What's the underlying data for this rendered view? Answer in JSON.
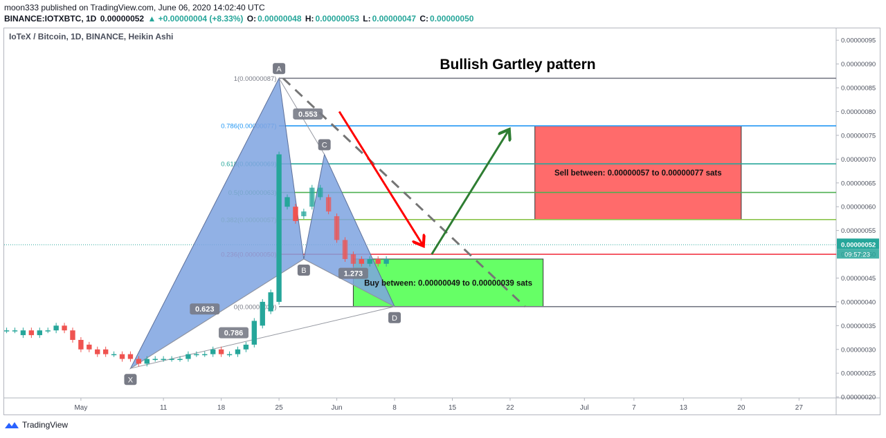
{
  "header": {
    "author_line": "moon333 published on TradingView.com, June 06, 2020 14:02:40 UTC",
    "symbol_line": "BINANCE:IOTXBTC, 1D",
    "last": "0.00000052",
    "change": "▲ +0.00000004 (+8.33%)",
    "o_label": "O:",
    "o_value": "0.00000048",
    "h_label": "H:",
    "h_value": "0.00000053",
    "l_label": "L:",
    "l_value": "0.00000047",
    "c_label": "C:",
    "c_value": "0.00000050"
  },
  "symbol_title": "IoTeX / Bitcoin, 1D, BINANCE, Heikin Ashi",
  "footer": {
    "brand": "TradingView"
  },
  "price_tag": "0.00000052",
  "countdown_tag": "09:57:23",
  "colors": {
    "up": "#26a69a",
    "down": "#ef5350",
    "pattern": "#7ea3e0",
    "sell_zone": "#ff6b6b",
    "buy_zone": "#66ff66",
    "arrow_red": "#ff0000",
    "arrow_green": "#2e7d32"
  },
  "chart_data": {
    "type": "candlestick",
    "title": "Bullish Gartley pattern",
    "y_ticks": [
      "0.00000095",
      "0.00000090",
      "0.00000085",
      "0.00000080",
      "0.00000075",
      "0.00000070",
      "0.00000065",
      "0.00000060",
      "0.00000055",
      "0.00000050",
      "0.00000045",
      "0.00000040",
      "0.00000035",
      "0.00000030",
      "0.00000025",
      "0.00000020"
    ],
    "y_tick_values": [
      95,
      90,
      85,
      80,
      75,
      70,
      65,
      60,
      55,
      50,
      45,
      40,
      35,
      30,
      25,
      20
    ],
    "ylim": [
      19.8,
      97.5
    ],
    "x_ticks": [
      {
        "label": "May",
        "day": 0
      },
      {
        "label": "11",
        "day": 10
      },
      {
        "label": "18",
        "day": 17
      },
      {
        "label": "25",
        "day": 24
      },
      {
        "label": "Jun",
        "day": 31
      },
      {
        "label": "8",
        "day": 38
      },
      {
        "label": "15",
        "day": 45
      },
      {
        "label": "22",
        "day": 52
      },
      {
        "label": "Jul",
        "day": 61
      },
      {
        "label": "7",
        "day": 67
      },
      {
        "label": "13",
        "day": 73
      },
      {
        "label": "20",
        "day": 80
      },
      {
        "label": "27",
        "day": 87
      }
    ],
    "xlim": [
      -9.3,
      91.5
    ],
    "candles": [
      {
        "day": -9,
        "o": 34,
        "c": 34
      },
      {
        "day": -8,
        "o": 34,
        "c": 34
      },
      {
        "day": -7,
        "o": 33,
        "c": 34
      },
      {
        "day": -6,
        "o": 34,
        "c": 33
      },
      {
        "day": -5,
        "o": 33,
        "c": 34
      },
      {
        "day": -4,
        "o": 34,
        "c": 34
      },
      {
        "day": -3,
        "o": 34,
        "c": 35
      },
      {
        "day": -2,
        "o": 35,
        "c": 34
      },
      {
        "day": -1,
        "o": 34,
        "c": 32
      },
      {
        "day": 0,
        "o": 32,
        "c": 30
      },
      {
        "day": 1,
        "o": 31,
        "c": 30
      },
      {
        "day": 2,
        "o": 30,
        "c": 29
      },
      {
        "day": 3,
        "o": 30,
        "c": 29
      },
      {
        "day": 4,
        "o": 29,
        "c": 29
      },
      {
        "day": 5,
        "o": 29,
        "c": 28
      },
      {
        "day": 6,
        "o": 29,
        "c": 28
      },
      {
        "day": 7,
        "o": 28,
        "c": 27
      },
      {
        "day": 8,
        "o": 27,
        "c": 28
      },
      {
        "day": 9,
        "o": 28,
        "c": 28
      },
      {
        "day": 10,
        "o": 28,
        "c": 28
      },
      {
        "day": 11,
        "o": 28,
        "c": 28
      },
      {
        "day": 12,
        "o": 28,
        "c": 28
      },
      {
        "day": 13,
        "o": 28,
        "c": 29
      },
      {
        "day": 14,
        "o": 29,
        "c": 29
      },
      {
        "day": 15,
        "o": 29,
        "c": 29
      },
      {
        "day": 16,
        "o": 29,
        "c": 30
      },
      {
        "day": 17,
        "o": 30,
        "c": 29
      },
      {
        "day": 18,
        "o": 29,
        "c": 29
      },
      {
        "day": 19,
        "o": 29,
        "c": 30
      },
      {
        "day": 20,
        "o": 30,
        "c": 31
      },
      {
        "day": 21,
        "o": 31,
        "c": 36
      },
      {
        "day": 22,
        "o": 35,
        "c": 40
      },
      {
        "day": 23,
        "o": 38,
        "c": 42
      },
      {
        "day": 24,
        "o": 40,
        "c": 71
      },
      {
        "day": 25,
        "o": 60,
        "c": 62
      },
      {
        "day": 26,
        "o": 60,
        "c": 57
      },
      {
        "day": 27,
        "o": 58,
        "c": 59
      },
      {
        "day": 28,
        "o": 60,
        "c": 64
      },
      {
        "day": 29,
        "o": 62,
        "c": 64
      },
      {
        "day": 30,
        "o": 62,
        "c": 59
      },
      {
        "day": 31,
        "o": 58,
        "c": 53
      },
      {
        "day": 32,
        "o": 53,
        "c": 49
      },
      {
        "day": 33,
        "o": 50,
        "c": 48
      },
      {
        "day": 34,
        "o": 49,
        "c": 48
      },
      {
        "day": 35,
        "o": 48,
        "c": 49
      },
      {
        "day": 36,
        "o": 49,
        "c": 48
      },
      {
        "day": 37,
        "o": 48,
        "c": 49
      }
    ],
    "fib_levels": [
      {
        "label": "1(0.00000087)",
        "value": 87,
        "color": "#787b86"
      },
      {
        "label": "0.786(0.00000077)",
        "value": 77,
        "color": "#2196f3"
      },
      {
        "label": "0.618(0.00000069)",
        "value": 69,
        "color": "#26a69a"
      },
      {
        "label": "0.5(0.00000063)",
        "value": 63,
        "color": "#4caf50"
      },
      {
        "label": "0.382(0.00000057)",
        "value": 57.3,
        "color": "#8bc34a"
      },
      {
        "label": "0.236(0.00000050)",
        "value": 50,
        "color": "#f23645"
      },
      {
        "label": "0(0.00000039)",
        "value": 39,
        "color": "#787b86"
      }
    ],
    "pattern_points": [
      {
        "label": "X",
        "day": 6,
        "value": 26
      },
      {
        "label": "A",
        "day": 24,
        "value": 87
      },
      {
        "label": "B",
        "day": 27,
        "value": 49
      },
      {
        "label": "C",
        "day": 29.5,
        "value": 71
      },
      {
        "label": "D",
        "day": 38,
        "value": 39
      }
    ],
    "ratios": [
      {
        "label": "0.553",
        "day": 27.5,
        "value": 79.5
      },
      {
        "label": "0.623",
        "day": 15,
        "value": 38.5
      },
      {
        "label": "0.786",
        "day": 18.5,
        "value": 33.5
      },
      {
        "label": "1.273",
        "day": 33,
        "value": 46
      }
    ],
    "sell_zone": {
      "label": "Sell between: 0.00000057 to 0.00000077 sats",
      "day_start": 55,
      "day_end": 80,
      "top": 77,
      "bottom": 57.3
    },
    "buy_zone": {
      "label": "Buy between: 0.00000049 to 0.00000039 sats",
      "day_start": 33,
      "day_end": 56,
      "top": 49,
      "bottom": 39
    },
    "last_value": 52,
    "arrows": [
      {
        "color": "red",
        "from": [
          31.3,
          80
        ],
        "to": [
          41.4,
          52
        ]
      },
      {
        "color": "green",
        "from": [
          42.5,
          50
        ],
        "to": [
          51.8,
          76
        ]
      }
    ],
    "projection_line": {
      "from": [
        24.5,
        87
      ],
      "to": [
        53.8,
        39
      ]
    }
  }
}
